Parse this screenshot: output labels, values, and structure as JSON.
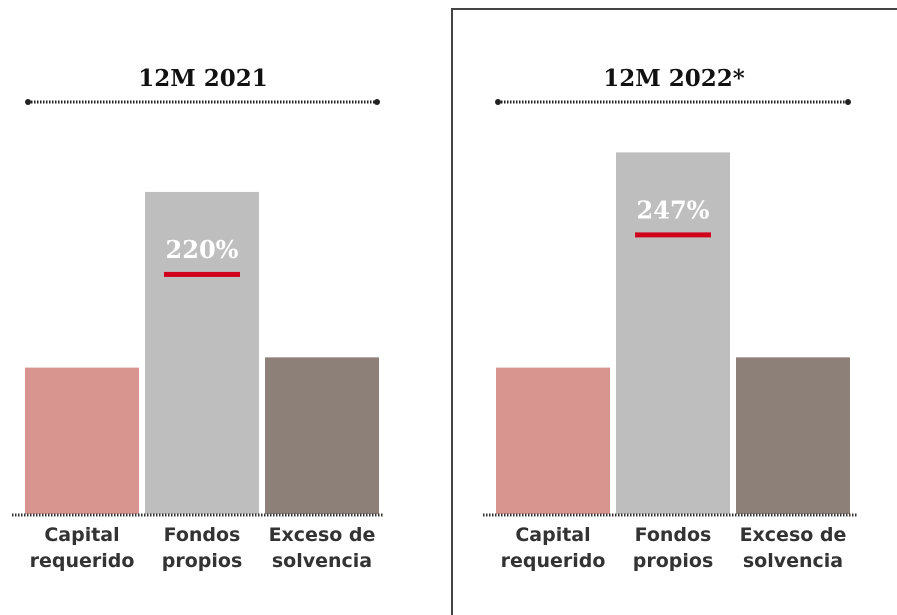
{
  "chart_data": [
    {
      "type": "bar",
      "title": "12M 2021",
      "categories": [
        "Capital requerido",
        "Fondos propios",
        "Exceso de solvencia"
      ],
      "values": [
        100,
        220,
        107
      ],
      "value_labels": [
        null,
        "220%",
        null
      ],
      "colors": [
        "#d8958f",
        "#bebebe",
        "#8c8079"
      ],
      "ylim": [
        0,
        250
      ]
    },
    {
      "type": "bar",
      "title": "12M 2022*",
      "categories": [
        "Capital requerido",
        "Fondos propios",
        "Exceso de solvencia"
      ],
      "values": [
        100,
        247,
        107
      ],
      "value_labels": [
        null,
        "247%",
        null
      ],
      "colors": [
        "#d8958f",
        "#bebebe",
        "#8c8079"
      ],
      "ylim": [
        0,
        250
      ]
    }
  ]
}
